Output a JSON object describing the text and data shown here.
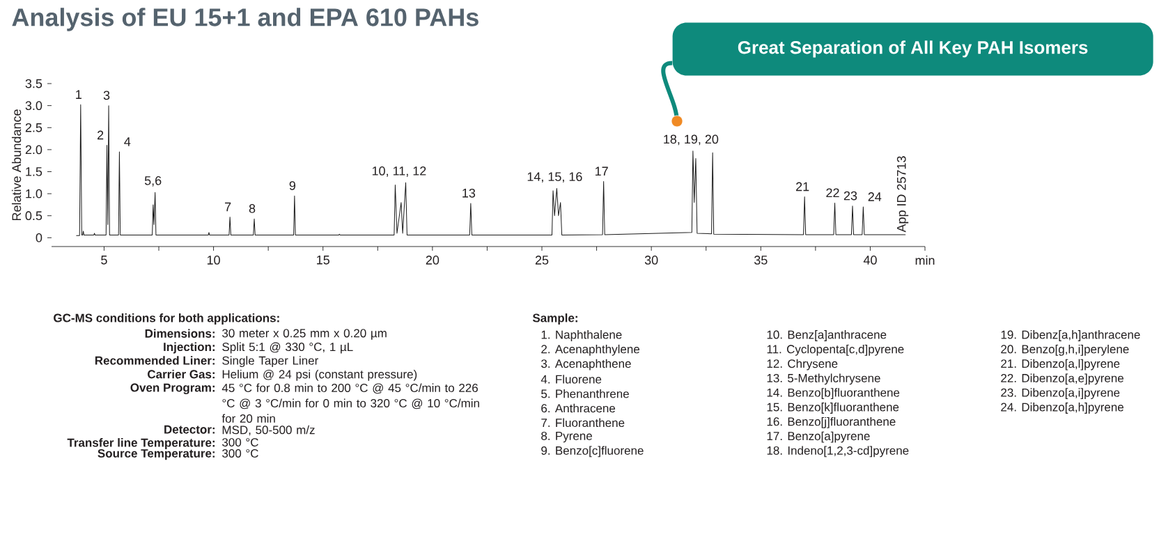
{
  "chart_data": {
    "type": "line",
    "title": "Analysis of EU 15+1 and EPA 610 PAHs",
    "ylabel": "Relative Abundance",
    "color": "#1a1a1a",
    "xlim": [
      2.6,
      42.5
    ],
    "ylim": [
      -0.2,
      3.5
    ],
    "xticks": [
      5,
      {
        "value": 7.5,
        "label": null
      },
      10,
      {
        "value": 12.5,
        "label": null
      },
      15,
      {
        "value": 17.5,
        "label": null
      },
      20,
      {
        "value": 22.5,
        "label": null
      },
      25,
      {
        "value": 27.5,
        "label": null
      },
      30,
      {
        "value": 32.5,
        "label": null
      },
      35,
      {
        "value": 37.5,
        "label": null
      },
      40,
      {
        "value": 42.5,
        "label": "min"
      }
    ],
    "yticks": [
      0,
      0.5,
      {
        "value": 1,
        "label": "1.0"
      },
      1.5,
      {
        "value": 2,
        "label": "2.0"
      },
      2.5,
      {
        "value": 3,
        "label": "3.0"
      },
      3.5
    ],
    "x": [
      3.74,
      3.88,
      3.93,
      3.98,
      4.02,
      4.05,
      4.08,
      4.53,
      4.56,
      4.59,
      5.09,
      5.13,
      5.17,
      5.21,
      5.25,
      5.66,
      5.7,
      5.74,
      7.2,
      7.24,
      7.28,
      7.33,
      7.37,
      9.76,
      9.79,
      9.82,
      10.71,
      10.75,
      10.79,
      11.82,
      11.86,
      11.9,
      13.66,
      13.7,
      13.74,
      15.72,
      15.75,
      15.78,
      18.25,
      18.3,
      18.38,
      18.57,
      18.64,
      18.78,
      18.84,
      21.7,
      21.75,
      21.8,
      25.46,
      25.51,
      25.58,
      25.68,
      25.76,
      25.85,
      25.91,
      27.77,
      27.82,
      27.87,
      31.85,
      31.9,
      31.96,
      32.03,
      32.09,
      32.75,
      32.8,
      32.85,
      36.95,
      37.0,
      37.05,
      38.33,
      38.38,
      38.43,
      39.14,
      39.19,
      39.24,
      39.63,
      39.68,
      39.73,
      41.6
    ],
    "values": [
      0.05,
      0.05,
      3.02,
      0.06,
      0.06,
      0.15,
      0.06,
      0.06,
      0.1,
      0.06,
      0.06,
      2.1,
      0.3,
      3.0,
      0.06,
      0.06,
      1.95,
      0.06,
      0.06,
      0.75,
      0.3,
      1.03,
      0.06,
      0.06,
      0.12,
      0.06,
      0.06,
      0.47,
      0.06,
      0.06,
      0.43,
      0.06,
      0.06,
      0.95,
      0.06,
      0.06,
      0.08,
      0.06,
      0.06,
      1.2,
      0.1,
      0.8,
      0.1,
      1.25,
      0.06,
      0.06,
      0.78,
      0.06,
      0.06,
      1.07,
      0.5,
      1.12,
      0.5,
      0.8,
      0.06,
      0.07,
      1.28,
      0.07,
      0.12,
      1.97,
      0.8,
      1.8,
      0.1,
      0.09,
      1.93,
      0.08,
      0.07,
      0.93,
      0.07,
      0.07,
      0.79,
      0.07,
      0.07,
      0.72,
      0.07,
      0.07,
      0.7,
      0.07,
      0.07
    ],
    "annotations": [
      {
        "text": "1",
        "x": 3.93,
        "y": 3.02
      },
      {
        "text": "2",
        "x": 5.13,
        "y": 2.1
      },
      {
        "text": "3",
        "x": 5.21,
        "y": 3.0
      },
      {
        "text": "4",
        "x": 5.7,
        "y": 1.95
      },
      {
        "text": "5,6",
        "x": 7.33,
        "y": 1.03
      },
      {
        "text": "7",
        "x": 10.75,
        "y": 0.47
      },
      {
        "text": "8",
        "x": 11.86,
        "y": 0.43
      },
      {
        "text": "9",
        "x": 13.7,
        "y": 0.95
      },
      {
        "text": "10, 11, 12",
        "x": 18.57,
        "y": 1.25
      },
      {
        "text": "13",
        "x": 21.75,
        "y": 0.78
      },
      {
        "text": "14, 15, 16",
        "x": 25.68,
        "y": 1.12
      },
      {
        "text": "17",
        "x": 27.82,
        "y": 1.28
      },
      {
        "text": "18, 19, 20",
        "x": 31.9,
        "y": 1.97
      },
      {
        "text": "21",
        "x": 37.0,
        "y": 0.93
      },
      {
        "text": "22",
        "x": 38.38,
        "y": 0.79
      },
      {
        "text": "23",
        "x": 39.19,
        "y": 0.72
      },
      {
        "text": "24",
        "x": 39.68,
        "y": 0.7
      },
      "Great Separation of All Key PAH Isomers",
      "App ID 25713",
      "GC-MS conditions for both applications:",
      "Dimensions:",
      "30 meter x 0.25 mm x 0.20 µm",
      "Injection:",
      "Split 5:1 @ 330 °C, 1 µL",
      "Recommended Liner:",
      "Single Taper Liner",
      "Carrier Gas:",
      "Helium @ 24 psi (constant pressure)",
      "Oven Program:",
      "45 °C for 0.8 min to 200 °C @ 45 °C/min to 226 °C @ 3 °C/min for 0 min to 320 °C @ 10 °C/min for 20 min",
      "Detector:",
      "MSD, 50-500 m/z",
      "Transfer line Temperature:",
      "300 °C",
      "Source Temperature:",
      "300 °C",
      "Sample:",
      "1. Naphthalene",
      "2. Acenaphthylene",
      "3. Acenaphthene",
      "4. Fluorene",
      "5. Phenanthrene",
      "6. Anthracene",
      "7. Fluoranthene",
      "8. Pyrene",
      "9. Benzo[c]fluorene",
      "10. Benz[a]anthracene",
      "11. Cyclopenta[c,d]pyrene",
      "12. Chrysene",
      "13. 5-Methylchrysene",
      "14. Benzo[b]fluoranthene",
      "15. Benzo[k]fluoranthene",
      "16. Benzo[j]fluoranthene",
      "17. Benzo[a]pyrene",
      "18. Indeno[1,2,3-cd]pyrene",
      "19. Dibenz[a,h]anthracene",
      "20. Benzo[g,h,i]perylene",
      "21. Dibenzo[a,l]pyrene",
      "22. Dibenzo[a,e]pyrene",
      "23. Dibenzo[a,i]pyrene",
      "24. Dibenzo[a,h]pyrene"
    ]
  }
}
